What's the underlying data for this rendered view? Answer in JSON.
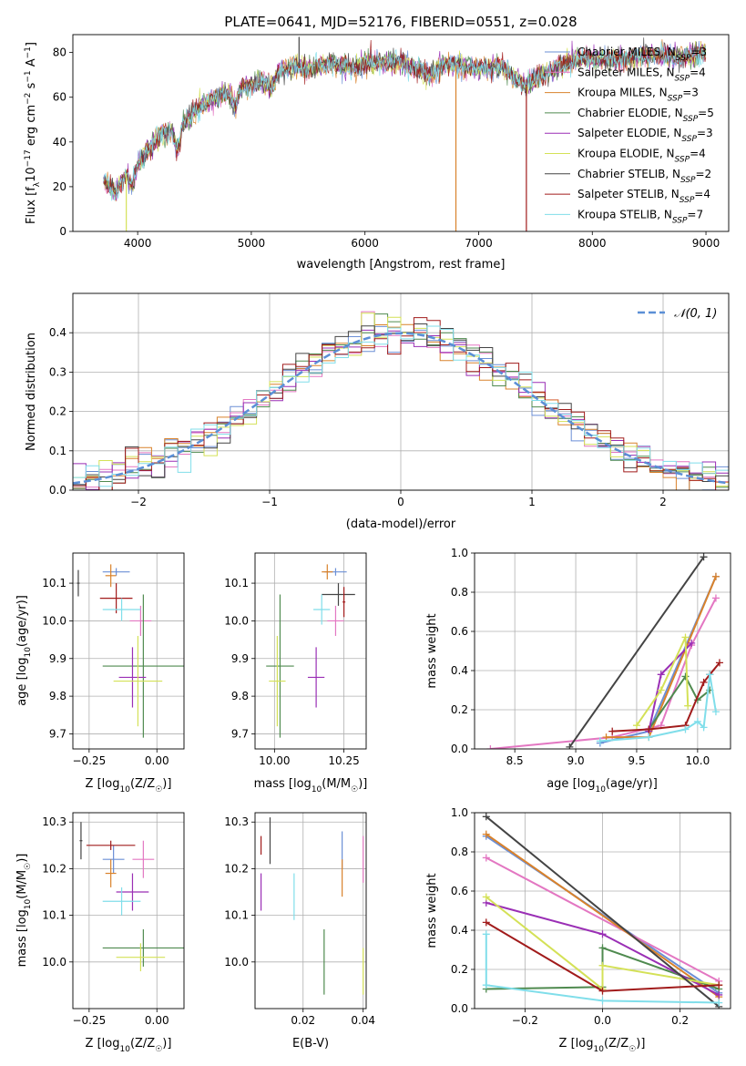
{
  "figure": {
    "title": "PLATE=0641, MJD=52176, FIBERID=0551, z=0.028"
  },
  "chart_data": [
    {
      "type": "line",
      "name": "spectrum",
      "title": "PLATE=0641, MJD=52176, FIBERID=0551, z=0.028",
      "xlabel": "wavelength [Angstrom, rest frame]",
      "ylabel": "Flux [f_λ10^-17 erg cm^-2 s^-1 A^-1]",
      "xlim": [
        3430,
        9200
      ],
      "ylim": [
        0,
        88
      ],
      "xticks": [
        4000,
        5000,
        6000,
        7000,
        8000,
        9000
      ],
      "yticks": [
        0,
        20,
        40,
        60,
        80
      ],
      "legend_position": "top-right",
      "series": [
        {
          "name": "Chabrier MILES, N_SSP=3",
          "color": "#6b8fd6"
        },
        {
          "name": "Salpeter MILES, N_SSP=4",
          "color": "#e377c2"
        },
        {
          "name": "Kroupa MILES, N_SSP=3",
          "color": "#d9822b"
        },
        {
          "name": "Chabrier ELODIE, N_SSP=5",
          "color": "#4f8a4f"
        },
        {
          "name": "Salpeter ELODIE, N_SSP=3",
          "color": "#9a2fb5"
        },
        {
          "name": "Kroupa ELODIE, N_SSP=4",
          "color": "#d4e157"
        },
        {
          "name": "Chabrier STELIB, N_SSP=2",
          "color": "#444444"
        },
        {
          "name": "Salpeter STELIB, N_SSP=4",
          "color": "#a11b1b"
        },
        {
          "name": "Kroupa STELIB, N_SSP=7",
          "color": "#80deea"
        }
      ],
      "anchors_x": [
        3700,
        3800,
        3900,
        3950,
        4000,
        4050,
        4100,
        4200,
        4300,
        4350,
        4400,
        4500,
        4600,
        4700,
        4800,
        4860,
        4900,
        5000,
        5100,
        5175,
        5250,
        5400,
        5500,
        5700,
        5890,
        6000,
        6300,
        6563,
        6700,
        7000,
        7200,
        7400,
        7600,
        7800,
        8000,
        8200,
        8500,
        8800,
        9000
      ],
      "anchors_y": [
        23,
        17,
        26,
        20,
        30,
        34,
        37,
        43,
        45,
        36,
        48,
        53,
        58,
        60,
        62,
        55,
        63,
        66,
        68,
        64,
        72,
        74,
        73,
        75,
        73,
        75,
        76,
        70,
        75,
        73,
        74,
        65,
        71,
        76,
        78,
        76,
        79,
        78,
        80
      ],
      "spikes": [
        {
          "x": 3900,
          "y": 0,
          "color": "#d4e157"
        },
        {
          "x": 6800,
          "y": 0,
          "color": "#d9822b"
        },
        {
          "x": 7420,
          "y": 0,
          "color": "#a11b1b"
        },
        {
          "x": 5420,
          "y": 87,
          "color": "#444444"
        }
      ]
    },
    {
      "type": "histogram",
      "name": "residuals",
      "xlabel": "(data-model)/error",
      "ylabel": "Normed distribution",
      "xlim": [
        -2.5,
        2.5
      ],
      "ylim": [
        0,
        0.5
      ],
      "xticks": [
        -2,
        -1,
        0,
        1,
        2
      ],
      "yticks": [
        0.0,
        0.1,
        0.2,
        0.3,
        0.4
      ],
      "legend_position": "top-right",
      "legend": "N(0,1)",
      "reference_color": "#5b8fd6",
      "bin_width": 0.1
    },
    {
      "type": "scatter",
      "name": "age-vs-metallicity",
      "xlabel": "Z [log10(Z/Z☉)]",
      "ylabel": "age [log10(age/yr)]",
      "xlim": [
        -0.31,
        0.1
      ],
      "ylim": [
        9.66,
        10.18
      ],
      "xticks": [
        -0.25,
        0.0
      ],
      "yticks": [
        9.7,
        9.8,
        9.9,
        10.0,
        10.1
      ],
      "points": [
        {
          "series": "Chabrier MILES",
          "x": -0.15,
          "y": 10.13,
          "xerr": 0.05,
          "yerr": 0.01,
          "color": "#6b8fd6"
        },
        {
          "series": "Salpeter MILES",
          "x": -0.06,
          "y": 10.0,
          "xerr": 0.04,
          "yerr": 0.04,
          "color": "#e377c2"
        },
        {
          "series": "Kroupa MILES",
          "x": -0.17,
          "y": 10.12,
          "xerr": 0.02,
          "yerr": 0.03,
          "color": "#d9822b"
        },
        {
          "series": "Chabrier ELODIE",
          "x": -0.05,
          "y": 9.88,
          "xerr": 0.15,
          "yerr": 0.19,
          "color": "#4f8a4f"
        },
        {
          "series": "Salpeter ELODIE",
          "x": -0.09,
          "y": 9.85,
          "xerr": 0.05,
          "yerr": 0.08,
          "color": "#9a2fb5"
        },
        {
          "series": "Kroupa ELODIE",
          "x": -0.07,
          "y": 9.84,
          "xerr": 0.09,
          "yerr": 0.12,
          "color": "#d4e157"
        },
        {
          "series": "Chabrier STELIB",
          "x": -0.29,
          "y": 10.1,
          "xerr": 0.005,
          "yerr": 0.035,
          "color": "#444444"
        },
        {
          "series": "Salpeter STELIB",
          "x": -0.15,
          "y": 10.06,
          "xerr": 0.06,
          "yerr": 0.04,
          "color": "#a11b1b"
        },
        {
          "series": "Kroupa STELIB",
          "x": -0.13,
          "y": 10.03,
          "xerr": 0.07,
          "yerr": 0.03,
          "color": "#80deea"
        }
      ]
    },
    {
      "type": "scatter",
      "name": "age-vs-mass",
      "xlabel": "mass [log10(M/M☉)]",
      "ylabel": "",
      "xlim": [
        9.93,
        10.33
      ],
      "ylim": [
        9.66,
        10.18
      ],
      "xticks": [
        10.0,
        10.25
      ],
      "yticks": [
        9.7,
        9.8,
        9.9,
        10.0,
        10.1
      ],
      "points": [
        {
          "series": "Chabrier MILES",
          "x": 10.22,
          "y": 10.13,
          "xerr": 0.04,
          "yerr": 0.01,
          "color": "#6b8fd6"
        },
        {
          "series": "Salpeter MILES",
          "x": 10.22,
          "y": 10.0,
          "xerr": 0.03,
          "yerr": 0.04,
          "color": "#e377c2"
        },
        {
          "series": "Kroupa MILES",
          "x": 10.19,
          "y": 10.13,
          "xerr": 0.02,
          "yerr": 0.02,
          "color": "#d9822b"
        },
        {
          "series": "Chabrier ELODIE",
          "x": 10.02,
          "y": 9.88,
          "xerr": 0.05,
          "yerr": 0.19,
          "color": "#4f8a4f"
        },
        {
          "series": "Salpeter ELODIE",
          "x": 10.15,
          "y": 9.85,
          "xerr": 0.03,
          "yerr": 0.08,
          "color": "#9a2fb5"
        },
        {
          "series": "Kroupa ELODIE",
          "x": 10.01,
          "y": 9.84,
          "xerr": 0.03,
          "yerr": 0.12,
          "color": "#d4e157"
        },
        {
          "series": "Chabrier STELIB",
          "x": 10.23,
          "y": 10.07,
          "xerr": 0.06,
          "yerr": 0.03,
          "color": "#444444"
        },
        {
          "series": "Salpeter STELIB",
          "x": 10.25,
          "y": 10.05,
          "xerr": 0.005,
          "yerr": 0.04,
          "color": "#a11b1b"
        },
        {
          "series": "Kroupa STELIB",
          "x": 10.17,
          "y": 10.03,
          "xerr": 0.03,
          "yerr": 0.04,
          "color": "#80deea"
        }
      ]
    },
    {
      "type": "line",
      "name": "mass-weight-vs-age",
      "xlabel": "age [log10(age/yr)]",
      "ylabel": "mass weight",
      "xlim": [
        8.17,
        10.27
      ],
      "ylim": [
        0,
        1.0
      ],
      "xticks": [
        8.5,
        9.0,
        9.5,
        10.0
      ],
      "yticks": [
        0.0,
        0.2,
        0.4,
        0.6,
        0.8,
        1.0
      ],
      "series": [
        {
          "name": "Chabrier MILES",
          "color": "#6b8fd6",
          "x": [
            9.2,
            9.6,
            10.15
          ],
          "y": [
            0.03,
            0.09,
            0.88
          ]
        },
        {
          "name": "Salpeter MILES",
          "x": [
            8.3,
            9.3,
            9.7,
            9.95,
            10.15
          ],
          "y": [
            0.0,
            0.06,
            0.12,
            0.53,
            0.77
          ],
          "color": "#e377c2"
        },
        {
          "name": "Kroupa MILES",
          "x": [
            9.25,
            9.6,
            10.15
          ],
          "y": [
            0.06,
            0.06,
            0.88
          ],
          "color": "#d9822b"
        },
        {
          "name": "Chabrier ELODIE",
          "x": [
            9.6,
            9.9,
            10.0,
            10.1
          ],
          "y": [
            0.1,
            0.37,
            0.25,
            0.3
          ],
          "color": "#4f8a4f"
        },
        {
          "name": "Salpeter ELODIE",
          "x": [
            9.6,
            9.7,
            9.95
          ],
          "y": [
            0.09,
            0.38,
            0.54
          ],
          "color": "#9a2fb5"
        },
        {
          "name": "Kroupa ELODIE",
          "x": [
            9.5,
            9.7,
            9.9,
            9.92
          ],
          "y": [
            0.12,
            0.3,
            0.57,
            0.22
          ],
          "color": "#d4e157"
        },
        {
          "name": "Chabrier STELIB",
          "x": [
            8.95,
            10.05
          ],
          "y": [
            0.01,
            0.98
          ],
          "color": "#444444"
        },
        {
          "name": "Salpeter STELIB",
          "x": [
            9.3,
            9.6,
            9.9,
            10.05,
            10.1,
            10.18
          ],
          "y": [
            0.09,
            0.1,
            0.12,
            0.34,
            0.38,
            0.44
          ],
          "color": "#a11b1b"
        },
        {
          "name": "Kroupa STELIB",
          "x": [
            9.2,
            9.6,
            9.9,
            10.0,
            10.05,
            10.1,
            10.15
          ],
          "y": [
            0.04,
            0.06,
            0.1,
            0.14,
            0.11,
            0.38,
            0.19
          ],
          "color": "#80deea"
        }
      ]
    },
    {
      "type": "scatter",
      "name": "mass-vs-metallicity",
      "xlabel": "Z [log10(Z/Z☉)]",
      "ylabel": "mass [log10(M/M☉)]",
      "xlim": [
        -0.31,
        0.1
      ],
      "ylim": [
        9.9,
        10.32
      ],
      "xticks": [
        -0.25,
        0.0
      ],
      "yticks": [
        10.0,
        10.1,
        10.2,
        10.3
      ],
      "points": [
        {
          "series": "Chabrier MILES",
          "x": -0.16,
          "y": 10.22,
          "xerr": 0.04,
          "yerr": 0.03,
          "color": "#6b8fd6"
        },
        {
          "series": "Salpeter MILES",
          "x": -0.05,
          "y": 10.22,
          "xerr": 0.04,
          "yerr": 0.04,
          "color": "#e377c2"
        },
        {
          "series": "Kroupa MILES",
          "x": -0.17,
          "y": 10.19,
          "xerr": 0.02,
          "yerr": 0.03,
          "color": "#d9822b"
        },
        {
          "series": "Chabrier ELODIE",
          "x": -0.05,
          "y": 10.03,
          "xerr": 0.15,
          "yerr": 0.04,
          "color": "#4f8a4f"
        },
        {
          "series": "Salpeter ELODIE",
          "x": -0.09,
          "y": 10.15,
          "xerr": 0.06,
          "yerr": 0.04,
          "color": "#9a2fb5"
        },
        {
          "series": "Kroupa ELODIE",
          "x": -0.06,
          "y": 10.01,
          "xerr": 0.09,
          "yerr": 0.03,
          "color": "#d4e157"
        },
        {
          "series": "Chabrier STELIB",
          "x": -0.28,
          "y": 10.26,
          "xerr": 0.005,
          "yerr": 0.04,
          "color": "#444444"
        },
        {
          "series": "Salpeter STELIB",
          "x": -0.17,
          "y": 10.25,
          "xerr": 0.09,
          "yerr": 0.01,
          "color": "#a11b1b"
        },
        {
          "series": "Kroupa STELIB",
          "x": -0.13,
          "y": 10.13,
          "xerr": 0.07,
          "yerr": 0.03,
          "color": "#80deea"
        }
      ]
    },
    {
      "type": "scatter",
      "name": "mass-vs-extinction",
      "xlabel": "E(B-V)",
      "ylabel": "",
      "xlim": [
        0.004,
        0.041
      ],
      "ylim": [
        9.9,
        10.32
      ],
      "xticks": [
        0.02,
        0.04
      ],
      "yticks": [
        10.0,
        10.1,
        10.2,
        10.3
      ],
      "points": [
        {
          "series": "Chabrier MILES",
          "x": 0.033,
          "y": 10.24,
          "xerr": 0,
          "yerr": 0.04,
          "color": "#6b8fd6"
        },
        {
          "series": "Salpeter MILES",
          "x": 0.04,
          "y": 10.22,
          "xerr": 0,
          "yerr": 0.05,
          "color": "#e377c2"
        },
        {
          "series": "Kroupa MILES",
          "x": 0.033,
          "y": 10.18,
          "xerr": 0,
          "yerr": 0.04,
          "color": "#d9822b"
        },
        {
          "series": "Chabrier ELODIE",
          "x": 0.027,
          "y": 10.0,
          "xerr": 0,
          "yerr": 0.07,
          "color": "#4f8a4f"
        },
        {
          "series": "Salpeter ELODIE",
          "x": 0.006,
          "y": 10.15,
          "xerr": 0,
          "yerr": 0.04,
          "color": "#9a2fb5"
        },
        {
          "series": "Kroupa ELODIE",
          "x": 0.04,
          "y": 9.98,
          "xerr": 0,
          "yerr": 0.05,
          "color": "#d4e157"
        },
        {
          "series": "Chabrier STELIB",
          "x": 0.009,
          "y": 10.26,
          "xerr": 0,
          "yerr": 0.05,
          "color": "#444444"
        },
        {
          "series": "Salpeter STELIB",
          "x": 0.006,
          "y": 10.25,
          "xerr": 0,
          "yerr": 0.02,
          "color": "#a11b1b"
        },
        {
          "series": "Kroupa STELIB",
          "x": 0.017,
          "y": 10.14,
          "xerr": 0,
          "yerr": 0.05,
          "color": "#80deea"
        }
      ]
    },
    {
      "type": "line",
      "name": "mass-weight-vs-metallicity",
      "xlabel": "Z [log10(Z/Z☉)]",
      "ylabel": "mass weight",
      "xlim": [
        -0.33,
        0.33
      ],
      "ylim": [
        0,
        1.0
      ],
      "xticks": [
        -0.2,
        0.0,
        0.2
      ],
      "yticks": [
        0.0,
        0.2,
        0.4,
        0.6,
        0.8,
        1.0
      ],
      "series": [
        {
          "name": "Chabrier MILES",
          "x": [
            -0.3,
            0.3
          ],
          "y": [
            0.88,
            0.08
          ],
          "color": "#6b8fd6"
        },
        {
          "name": "Salpeter MILES",
          "x": [
            -0.3,
            0.3
          ],
          "y": [
            0.77,
            0.14
          ],
          "color": "#e377c2"
        },
        {
          "name": "Kroupa MILES",
          "x": [
            -0.3,
            0.3
          ],
          "y": [
            0.89,
            0.06
          ],
          "color": "#d9822b"
        },
        {
          "name": "Chabrier ELODIE",
          "x": [
            -0.3,
            0.0,
            0.0,
            0.3
          ],
          "y": [
            0.1,
            0.11,
            0.31,
            0.1
          ],
          "color": "#4f8a4f"
        },
        {
          "name": "Salpeter ELODIE",
          "x": [
            -0.3,
            0.0,
            0.3
          ],
          "y": [
            0.54,
            0.38,
            0.07
          ],
          "color": "#9a2fb5"
        },
        {
          "name": "Kroupa ELODIE",
          "x": [
            -0.3,
            0.0,
            0.0,
            0.3
          ],
          "y": [
            0.57,
            0.1,
            0.22,
            0.12
          ],
          "color": "#d4e157"
        },
        {
          "name": "Chabrier STELIB",
          "x": [
            -0.3,
            0.3
          ],
          "y": [
            0.98,
            0.01
          ],
          "color": "#444444"
        },
        {
          "name": "Salpeter STELIB",
          "x": [
            -0.3,
            0.0,
            0.3
          ],
          "y": [
            0.44,
            0.09,
            0.12
          ],
          "color": "#a11b1b"
        },
        {
          "name": "Kroupa STELIB",
          "x": [
            -0.3,
            -0.3,
            0.0,
            0.3
          ],
          "y": [
            0.38,
            0.12,
            0.04,
            0.03
          ],
          "color": "#80deea"
        }
      ]
    }
  ]
}
